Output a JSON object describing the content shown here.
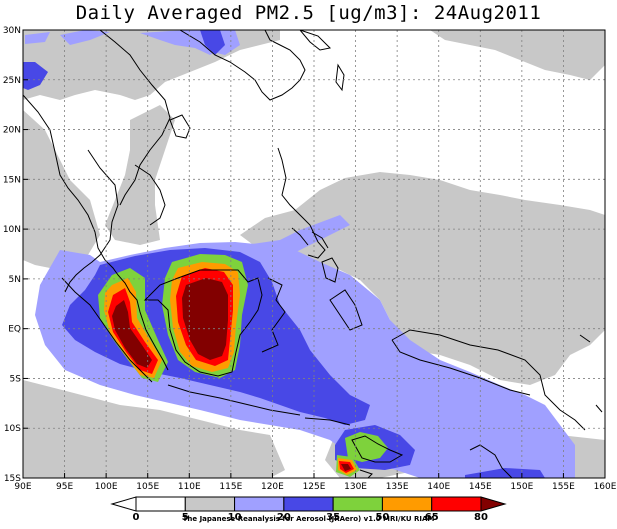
{
  "title": "Daily Averaged PM2.5 [ug/m3]: 24Aug2011",
  "footer": "The Japanese Reanalysis for Aerosol (JRAero) v1.0 MRI/KU RIAM",
  "map": {
    "lon_range": [
      90,
      160
    ],
    "lat_range": [
      -15,
      30
    ],
    "lon_ticks": [
      {
        "v": 90,
        "label": "90E"
      },
      {
        "v": 95,
        "label": "95E"
      },
      {
        "v": 100,
        "label": "100E"
      },
      {
        "v": 105,
        "label": "105E"
      },
      {
        "v": 110,
        "label": "110E"
      },
      {
        "v": 115,
        "label": "115E"
      },
      {
        "v": 120,
        "label": "120E"
      },
      {
        "v": 125,
        "label": "125E"
      },
      {
        "v": 130,
        "label": "130E"
      },
      {
        "v": 135,
        "label": "135E"
      },
      {
        "v": 140,
        "label": "140E"
      },
      {
        "v": 145,
        "label": "145E"
      },
      {
        "v": 150,
        "label": "150E"
      },
      {
        "v": 155,
        "label": "155E"
      },
      {
        "v": 160,
        "label": "160E"
      }
    ],
    "lat_ticks": [
      {
        "v": 30,
        "label": "30N"
      },
      {
        "v": 25,
        "label": "25N"
      },
      {
        "v": 20,
        "label": "20N"
      },
      {
        "v": 15,
        "label": "15N"
      },
      {
        "v": 10,
        "label": "10N"
      },
      {
        "v": 5,
        "label": "5N"
      },
      {
        "v": 0,
        "label": "EQ"
      },
      {
        "v": -5,
        "label": "5S"
      },
      {
        "v": -10,
        "label": "10S"
      },
      {
        "v": -15,
        "label": "15S"
      }
    ],
    "grid": true
  },
  "legend": {
    "levels": [
      "0",
      "5",
      "10",
      "20",
      "35",
      "50",
      "65",
      "80"
    ],
    "colors": [
      "#ffffff",
      "#ffffff",
      "#c8c8c8",
      "#a0a0ff",
      "#4848e6",
      "#7ed23c",
      "#ff9b00",
      "#ff0000",
      "#820000"
    ]
  }
}
